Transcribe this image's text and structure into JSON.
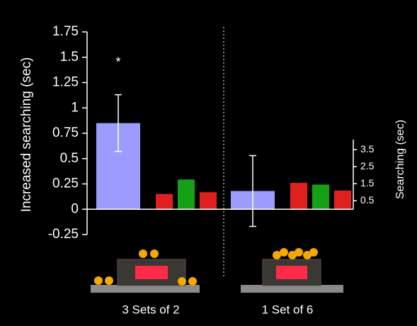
{
  "chart_data": {
    "type": "bar",
    "y_label": "Increased searching (sec)",
    "y2_label": "Searching (sec)",
    "categories": [
      "3 Sets of 2",
      "1 Set of 6"
    ],
    "ylim": [
      -0.25,
      1.75
    ],
    "yticks": [
      1.75,
      1.5,
      1.25,
      1,
      0.75,
      0.5,
      0.25,
      0,
      -0.25
    ],
    "y2lim": [
      0,
      4.1
    ],
    "y2ticks": [
      3.5,
      2.5,
      1.5,
      0.5
    ],
    "series": [
      {
        "color": "#9c9cff",
        "values": [
          0.85,
          0.18
        ],
        "errors": [
          0.28,
          0.35
        ]
      },
      {
        "color": "#e0201e",
        "values": [
          0.9,
          1.55
        ],
        "axis": "y2"
      },
      {
        "color": "#16a016",
        "values": [
          1.75,
          1.45
        ],
        "axis": "y2"
      },
      {
        "color": "#e0201e",
        "values": [
          1.0,
          1.1
        ],
        "axis": "y2"
      }
    ],
    "annotations": [
      {
        "text": "*",
        "category": 0
      }
    ]
  }
}
